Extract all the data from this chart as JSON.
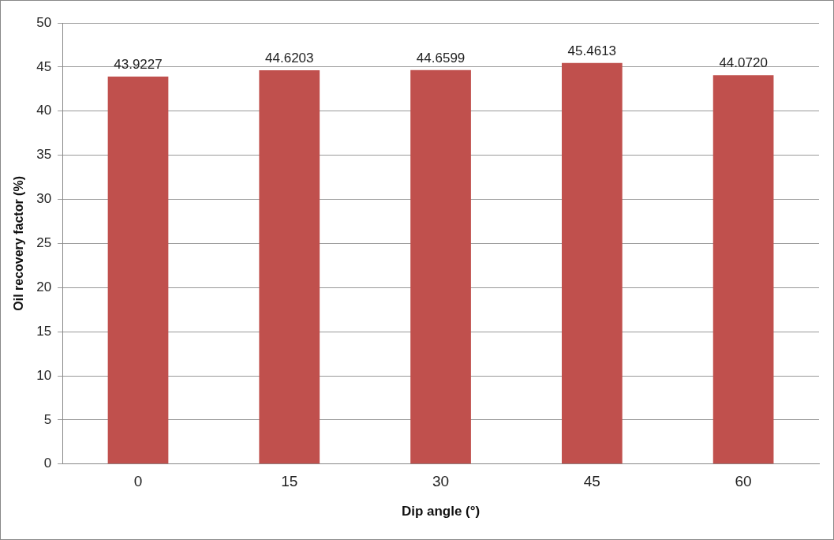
{
  "chart_data": {
    "type": "bar",
    "xlabel": "Dip angle (°)",
    "ylabel": "Oil recovery factor (%)",
    "categories": [
      "0",
      "15",
      "30",
      "45",
      "60"
    ],
    "values": [
      43.9227,
      44.6203,
      44.6599,
      45.4613,
      44.072
    ],
    "value_labels": [
      "43.9227",
      "44.6203",
      "44.6599",
      "45.4613",
      "44.0720"
    ],
    "color": "#c0504d",
    "ylim": [
      0,
      50
    ],
    "yticks": [
      0,
      5,
      10,
      15,
      20,
      25,
      30,
      35,
      40,
      45,
      50
    ],
    "grid": "y"
  }
}
